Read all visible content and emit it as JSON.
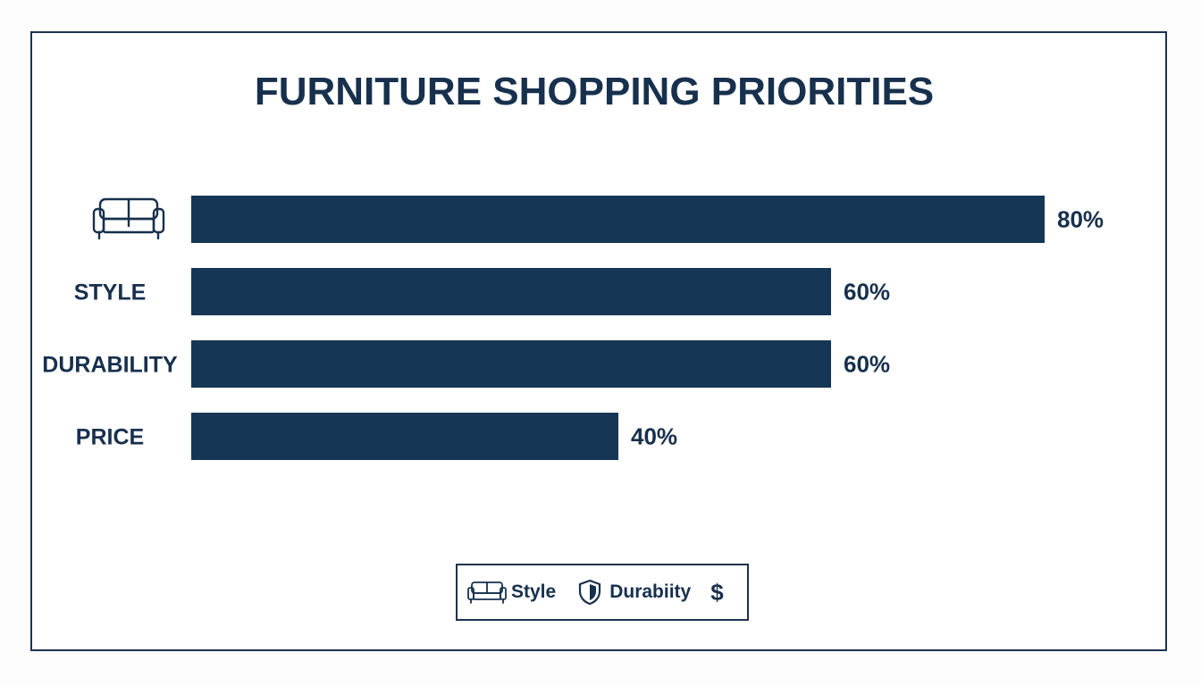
{
  "colors": {
    "bar": "#163656",
    "text": "#17304d",
    "frame": "#1b3350",
    "background": "#ffffff"
  },
  "chart_data": {
    "type": "bar",
    "orientation": "horizontal",
    "title": "FURNITURE SHOPPING PRIORITIES",
    "categories": [
      "",
      "STYLE",
      "DURABILITY",
      "PRICE"
    ],
    "category_icons": [
      "sofa-icon",
      "",
      "",
      ""
    ],
    "values": [
      80,
      60,
      60,
      40
    ],
    "value_labels": [
      "80%",
      "60%",
      "60%",
      "40%"
    ],
    "grid": false,
    "legend_position": "bottom-center"
  },
  "legend": {
    "items": [
      {
        "icon": "sofa-icon",
        "label": "Style"
      },
      {
        "icon": "shield-icon",
        "label": "Durabiity"
      },
      {
        "icon": "dollar-icon",
        "label": ""
      }
    ]
  }
}
